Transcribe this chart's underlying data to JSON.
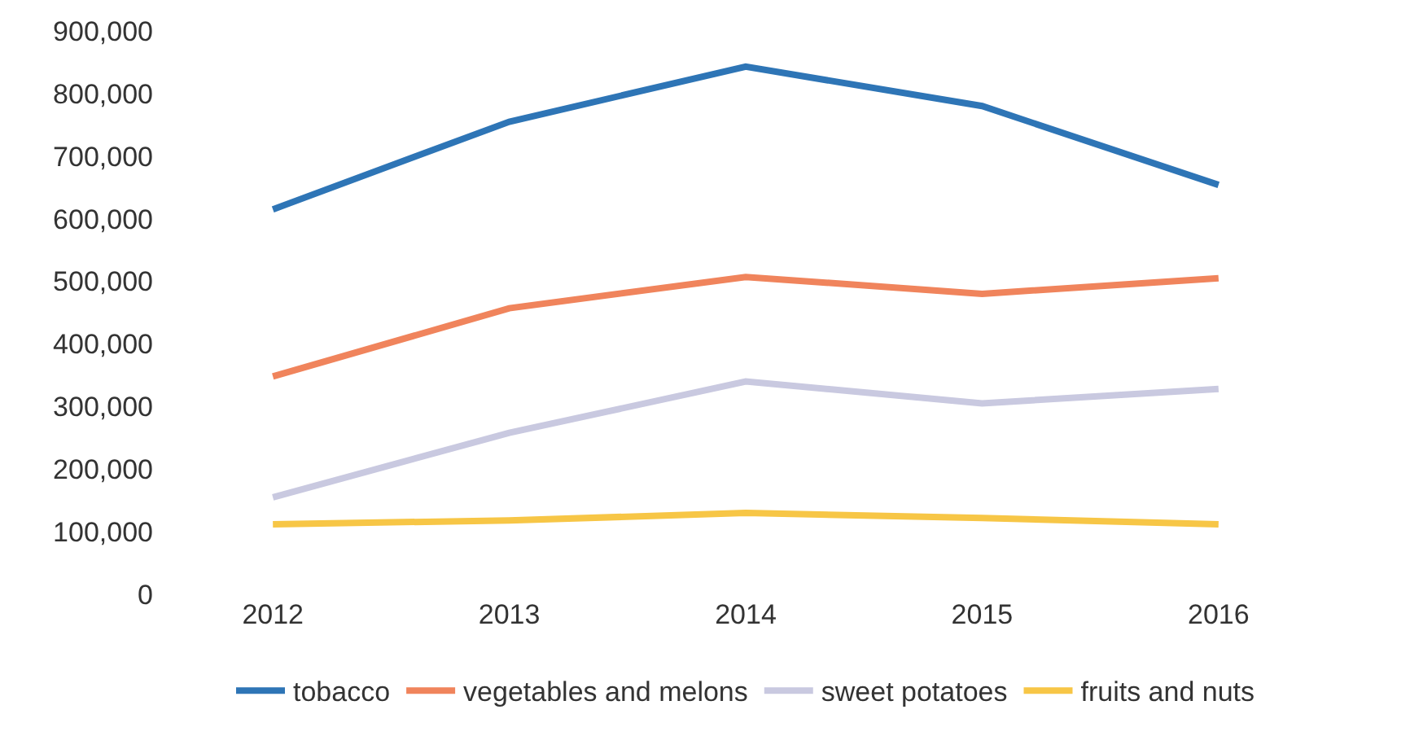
{
  "chart_data": {
    "type": "line",
    "categories": [
      "2012",
      "2013",
      "2014",
      "2015",
      "2016"
    ],
    "series": [
      {
        "name": "tobacco",
        "color": "#2e75b6",
        "values": [
          615000,
          755000,
          843000,
          780000,
          654000
        ]
      },
      {
        "name": "vegetables and melons",
        "color": "#f0845c",
        "values": [
          348000,
          457000,
          507000,
          480000,
          505000
        ]
      },
      {
        "name": "sweet potatoes",
        "color": "#c9c9e0",
        "values": [
          155000,
          258000,
          340000,
          305000,
          328000
        ]
      },
      {
        "name": "fruits and nuts",
        "color": "#f7c646",
        "values": [
          112000,
          118000,
          130000,
          122000,
          112000
        ]
      }
    ],
    "ylim": [
      0,
      900000
    ],
    "yticks": [
      {
        "value": 0,
        "label": "0"
      },
      {
        "value": 100000,
        "label": "100,000"
      },
      {
        "value": 200000,
        "label": "200,000"
      },
      {
        "value": 300000,
        "label": "300,000"
      },
      {
        "value": 400000,
        "label": "400,000"
      },
      {
        "value": 500000,
        "label": "500,000"
      },
      {
        "value": 600000,
        "label": "600,000"
      },
      {
        "value": 700000,
        "label": "700,000"
      },
      {
        "value": 800000,
        "label": "800,000"
      },
      {
        "value": 900000,
        "label": "900,000"
      }
    ],
    "legend": "bottom",
    "marker": "none",
    "line_style": "solid"
  }
}
